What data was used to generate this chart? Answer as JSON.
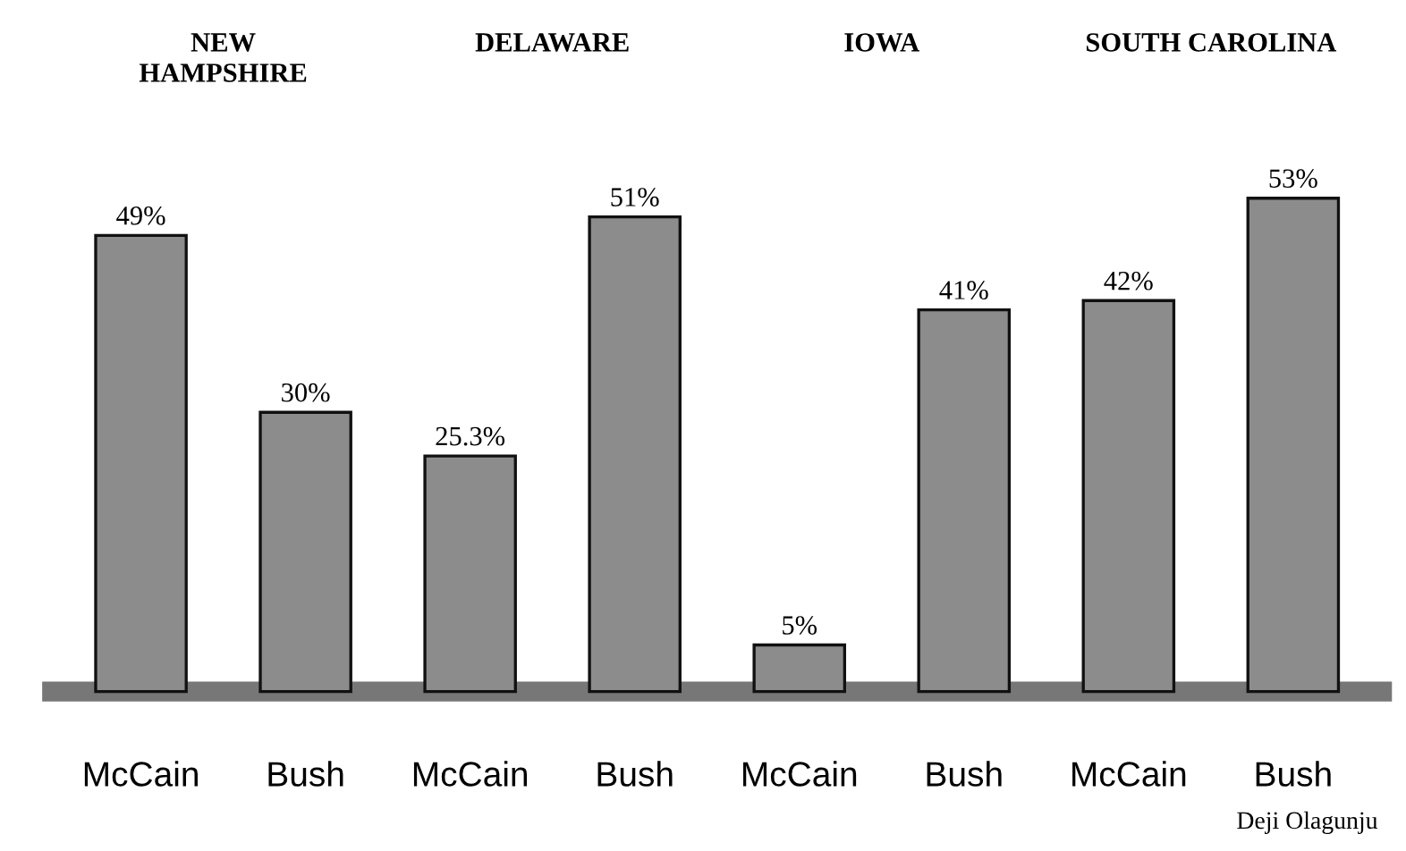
{
  "chart_data": {
    "type": "bar",
    "categories": [
      "McCain",
      "Bush",
      "McCain",
      "Bush",
      "McCain",
      "Bush",
      "McCain",
      "Bush"
    ],
    "values": [
      49,
      30,
      25.3,
      51,
      5,
      41,
      42,
      53
    ],
    "value_labels": [
      "49%",
      "30%",
      "25.3%",
      "51%",
      "5%",
      "41%",
      "42%",
      "53%"
    ],
    "color": "#8c8c8c",
    "annotations": [
      "NEW\nHAMPSHIRE",
      "DELAWARE",
      "IOWA",
      "SOUTH CAROLINA",
      "Deji Olagunju"
    ]
  }
}
